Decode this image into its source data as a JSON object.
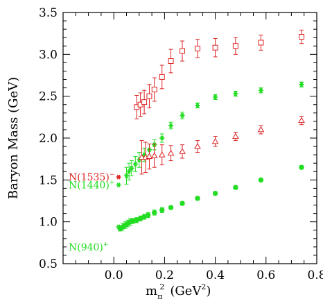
{
  "chart_data": {
    "type": "scatter",
    "title": "",
    "xlabel": {
      "base": "m",
      "sub": "π",
      "sup": "2",
      "unit_open": "(GeV",
      "unit_sup": "2",
      "unit_close": ")"
    },
    "ylabel": "Baryon Mass (GeV)",
    "xlim": [
      -0.2,
      0.8
    ],
    "ylim": [
      0.5,
      3.5
    ],
    "xticks": [
      "0.0",
      "0.2",
      "0.4",
      "0.6",
      "0.8"
    ],
    "yticks": [
      "0.5",
      "1.0",
      "1.5",
      "2.0",
      "2.5",
      "3.0",
      "3.5"
    ],
    "grid": false,
    "series": [
      {
        "marker": "circle",
        "color": "#22dd22",
        "filled": true,
        "points": [
          [
            0.025,
            0.92,
            0.03
          ],
          [
            0.035,
            0.94,
            0.04
          ],
          [
            0.045,
            0.96,
            0.04
          ],
          [
            0.055,
            0.98,
            0.04
          ],
          [
            0.065,
            1.0,
            0.04
          ],
          [
            0.075,
            1.01,
            0.03
          ],
          [
            0.09,
            1.02,
            0.03
          ],
          [
            0.105,
            1.04,
            0.03
          ],
          [
            0.12,
            1.06,
            0.03
          ],
          [
            0.135,
            1.08,
            0.03
          ],
          [
            0.16,
            1.11,
            0.03
          ],
          [
            0.19,
            1.14,
            0.03
          ],
          [
            0.225,
            1.17,
            0.02
          ],
          [
            0.27,
            1.22,
            0.02
          ],
          [
            0.33,
            1.28,
            0.02
          ],
          [
            0.4,
            1.34,
            0.02
          ],
          [
            0.48,
            1.41,
            0.02
          ],
          [
            0.58,
            1.5,
            0.02
          ],
          [
            0.74,
            1.65,
            0.02
          ]
        ]
      },
      {
        "marker": "star",
        "color": "#22dd22",
        "filled": true,
        "points": [
          [
            0.05,
            1.55,
            0.1
          ],
          [
            0.06,
            1.6,
            0.1
          ],
          [
            0.07,
            1.64,
            0.09
          ],
          [
            0.085,
            1.69,
            0.09
          ],
          [
            0.1,
            1.74,
            0.09
          ],
          [
            0.12,
            1.8,
            0.08
          ],
          [
            0.14,
            1.86,
            0.07
          ],
          [
            0.16,
            1.92,
            0.06
          ],
          [
            0.19,
            2.0,
            0.05
          ],
          [
            0.225,
            2.15,
            0.04
          ],
          [
            0.27,
            2.27,
            0.04
          ],
          [
            0.33,
            2.39,
            0.03
          ],
          [
            0.4,
            2.49,
            0.03
          ],
          [
            0.48,
            2.53,
            0.03
          ],
          [
            0.58,
            2.57,
            0.03
          ],
          [
            0.74,
            2.64,
            0.03
          ]
        ]
      },
      {
        "marker": "triangle",
        "color": "#dd2222",
        "filled": false,
        "points": [
          [
            0.11,
            1.77,
            0.2
          ],
          [
            0.125,
            1.77,
            0.18
          ],
          [
            0.14,
            1.78,
            0.15
          ],
          [
            0.16,
            1.79,
            0.14
          ],
          [
            0.19,
            1.8,
            0.12
          ],
          [
            0.225,
            1.82,
            0.09
          ],
          [
            0.27,
            1.84,
            0.08
          ],
          [
            0.33,
            1.9,
            0.07
          ],
          [
            0.4,
            1.96,
            0.06
          ],
          [
            0.48,
            2.02,
            0.05
          ],
          [
            0.58,
            2.1,
            0.05
          ],
          [
            0.74,
            2.21,
            0.05
          ]
        ]
      },
      {
        "marker": "square",
        "color": "#dd2222",
        "filled": false,
        "points": [
          [
            0.09,
            2.37,
            0.14
          ],
          [
            0.105,
            2.4,
            0.14
          ],
          [
            0.12,
            2.43,
            0.14
          ],
          [
            0.14,
            2.5,
            0.14
          ],
          [
            0.16,
            2.58,
            0.14
          ],
          [
            0.19,
            2.73,
            0.14
          ],
          [
            0.225,
            2.92,
            0.14
          ],
          [
            0.27,
            3.04,
            0.12
          ],
          [
            0.33,
            3.07,
            0.11
          ],
          [
            0.4,
            3.08,
            0.11
          ],
          [
            0.48,
            3.1,
            0.1
          ],
          [
            0.58,
            3.14,
            0.09
          ],
          [
            0.74,
            3.21,
            0.08
          ]
        ]
      }
    ],
    "physical_states": [
      {
        "name": "N(1535)",
        "sup": "−",
        "x": 0.019,
        "y": 1.535,
        "color": "#dd2222",
        "marker": "star"
      },
      {
        "name": "N(1440)",
        "sup": "+",
        "x": 0.019,
        "y": 1.44,
        "color": "#22dd22",
        "marker": "star"
      },
      {
        "name": "N(940)",
        "sup": "+",
        "x": 0.019,
        "y": 0.94,
        "color": "#22dd22",
        "marker": "star"
      }
    ]
  }
}
